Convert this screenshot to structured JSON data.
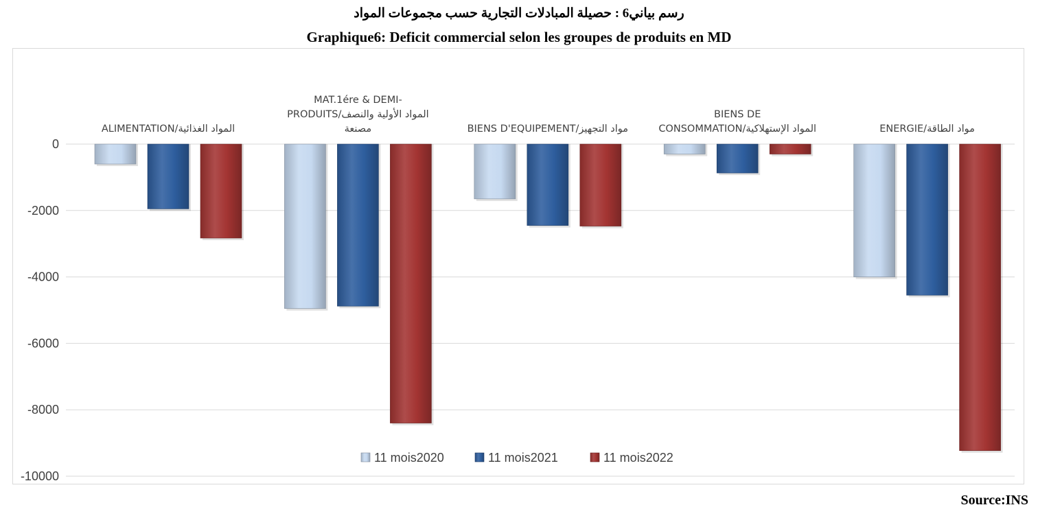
{
  "title_ar": "رسم بياني6 : حصيلة المبادلات التجارية حسب مجموعات المواد",
  "title_fr": "Graphique6: Deficit commercial selon les groupes de produits en MD",
  "source": "Source:INS",
  "chart_data": {
    "type": "bar",
    "categories": [
      [
        "ALIMENTATION/المواد الغذائية"
      ],
      [
        "MAT.1ére & DEMI-",
        "PRODUITS/المواد الأولية والنصف",
        "مصنعة"
      ],
      [
        "BIENS D'EQUIPEMENT/مواد التجهيز"
      ],
      [
        "BIENS DE",
        "CONSOMMATION/المواد الإستهلاكية"
      ],
      [
        "ENERGIE/مواد الطاقة"
      ]
    ],
    "series": [
      {
        "name": "11 mois2020",
        "color": "#c6d9f0",
        "values": [
          -600,
          -4950,
          -1650,
          -300,
          -4000
        ]
      },
      {
        "name": "11 mois2021",
        "color": "#2e5e9e",
        "values": [
          -1950,
          -4880,
          -2450,
          -870,
          -4550
        ]
      },
      {
        "name": "11 mois2022",
        "color": "#a33432",
        "values": [
          -2830,
          -8400,
          -2470,
          -300,
          -9230
        ]
      }
    ],
    "yticks": [
      "0",
      "-2000",
      "-4000",
      "-6000",
      "-8000",
      "-10000"
    ],
    "ylim": [
      -10000,
      0
    ],
    "grid": true,
    "legend": "bottom"
  }
}
